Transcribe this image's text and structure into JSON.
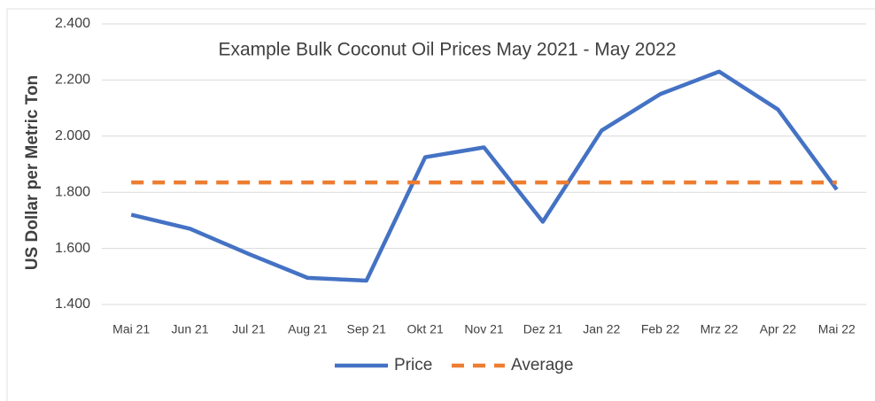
{
  "chart_data": {
    "type": "line",
    "title": "Example Bulk Coconut Oil Prices May 2021 - May 2022",
    "y_label": "US Dollar per Metric Ton",
    "categories": [
      "Mai 21",
      "Jun 21",
      "Jul 21",
      "Aug 21",
      "Sep 21",
      "Okt 21",
      "Nov 21",
      "Dez 21",
      "Jan 22",
      "Feb 22",
      "Mrz 22",
      "Apr 22",
      "Mai 22"
    ],
    "series": [
      {
        "name": "Price",
        "color": "#4472c4",
        "dashed": false,
        "values": [
          1720,
          1670,
          1580,
          1495,
          1485,
          1925,
          1960,
          1695,
          2020,
          2150,
          2230,
          2095,
          1810
        ]
      },
      {
        "name": "Average",
        "color": "#ed7d31",
        "dashed": true,
        "values": [
          1835,
          1835,
          1835,
          1835,
          1835,
          1835,
          1835,
          1835,
          1835,
          1835,
          1835,
          1835,
          1835
        ]
      }
    ],
    "ylim": [
      1400,
      2400
    ],
    "yticks": [
      {
        "value": 1400,
        "label": "1.400"
      },
      {
        "value": 1600,
        "label": "1.600"
      },
      {
        "value": 1800,
        "label": "1.800"
      },
      {
        "value": 2000,
        "label": "2.000"
      },
      {
        "value": 2200,
        "label": "2.200"
      },
      {
        "value": 2400,
        "label": "2.400"
      }
    ],
    "grid": true,
    "legend": "bottom"
  }
}
